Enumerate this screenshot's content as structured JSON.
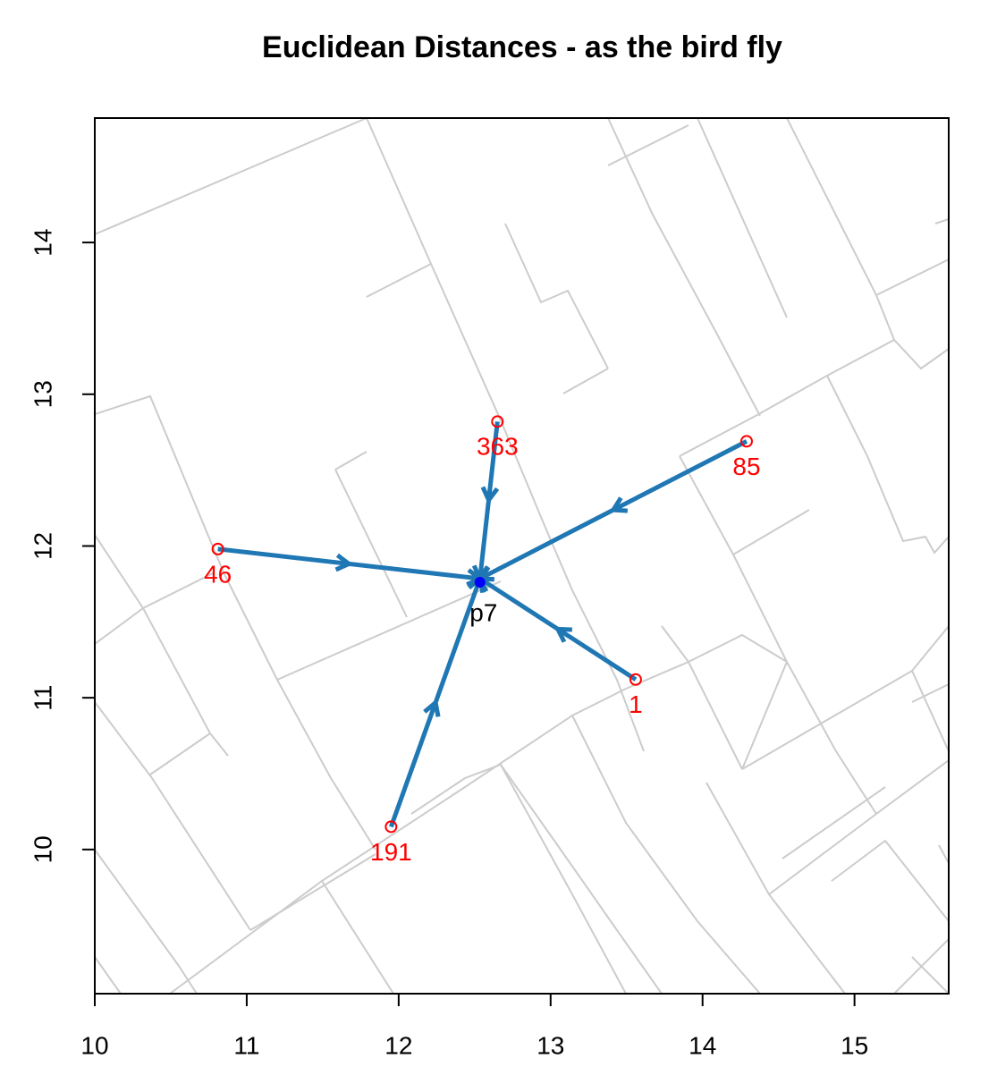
{
  "chart_data": {
    "type": "scatter",
    "title": "Euclidean Distances - as the bird fly",
    "xlim": [
      10,
      15.62
    ],
    "ylim": [
      9.05,
      14.82
    ],
    "xticks": [
      10,
      11,
      12,
      13,
      14,
      15
    ],
    "yticks": [
      10,
      11,
      12,
      13,
      14
    ],
    "points": {
      "x": [
        12.65,
        14.29,
        10.81,
        13.56,
        11.95
      ],
      "y": [
        12.82,
        12.69,
        11.98,
        11.12,
        10.15
      ],
      "labels": [
        "363",
        "85",
        "46",
        "1",
        "191"
      ],
      "color": "#ff0000"
    },
    "center": {
      "x": 12.535,
      "y": 11.785,
      "label": "p7",
      "color": "#0000ff"
    },
    "arrow_color": "#1f77b4"
  }
}
